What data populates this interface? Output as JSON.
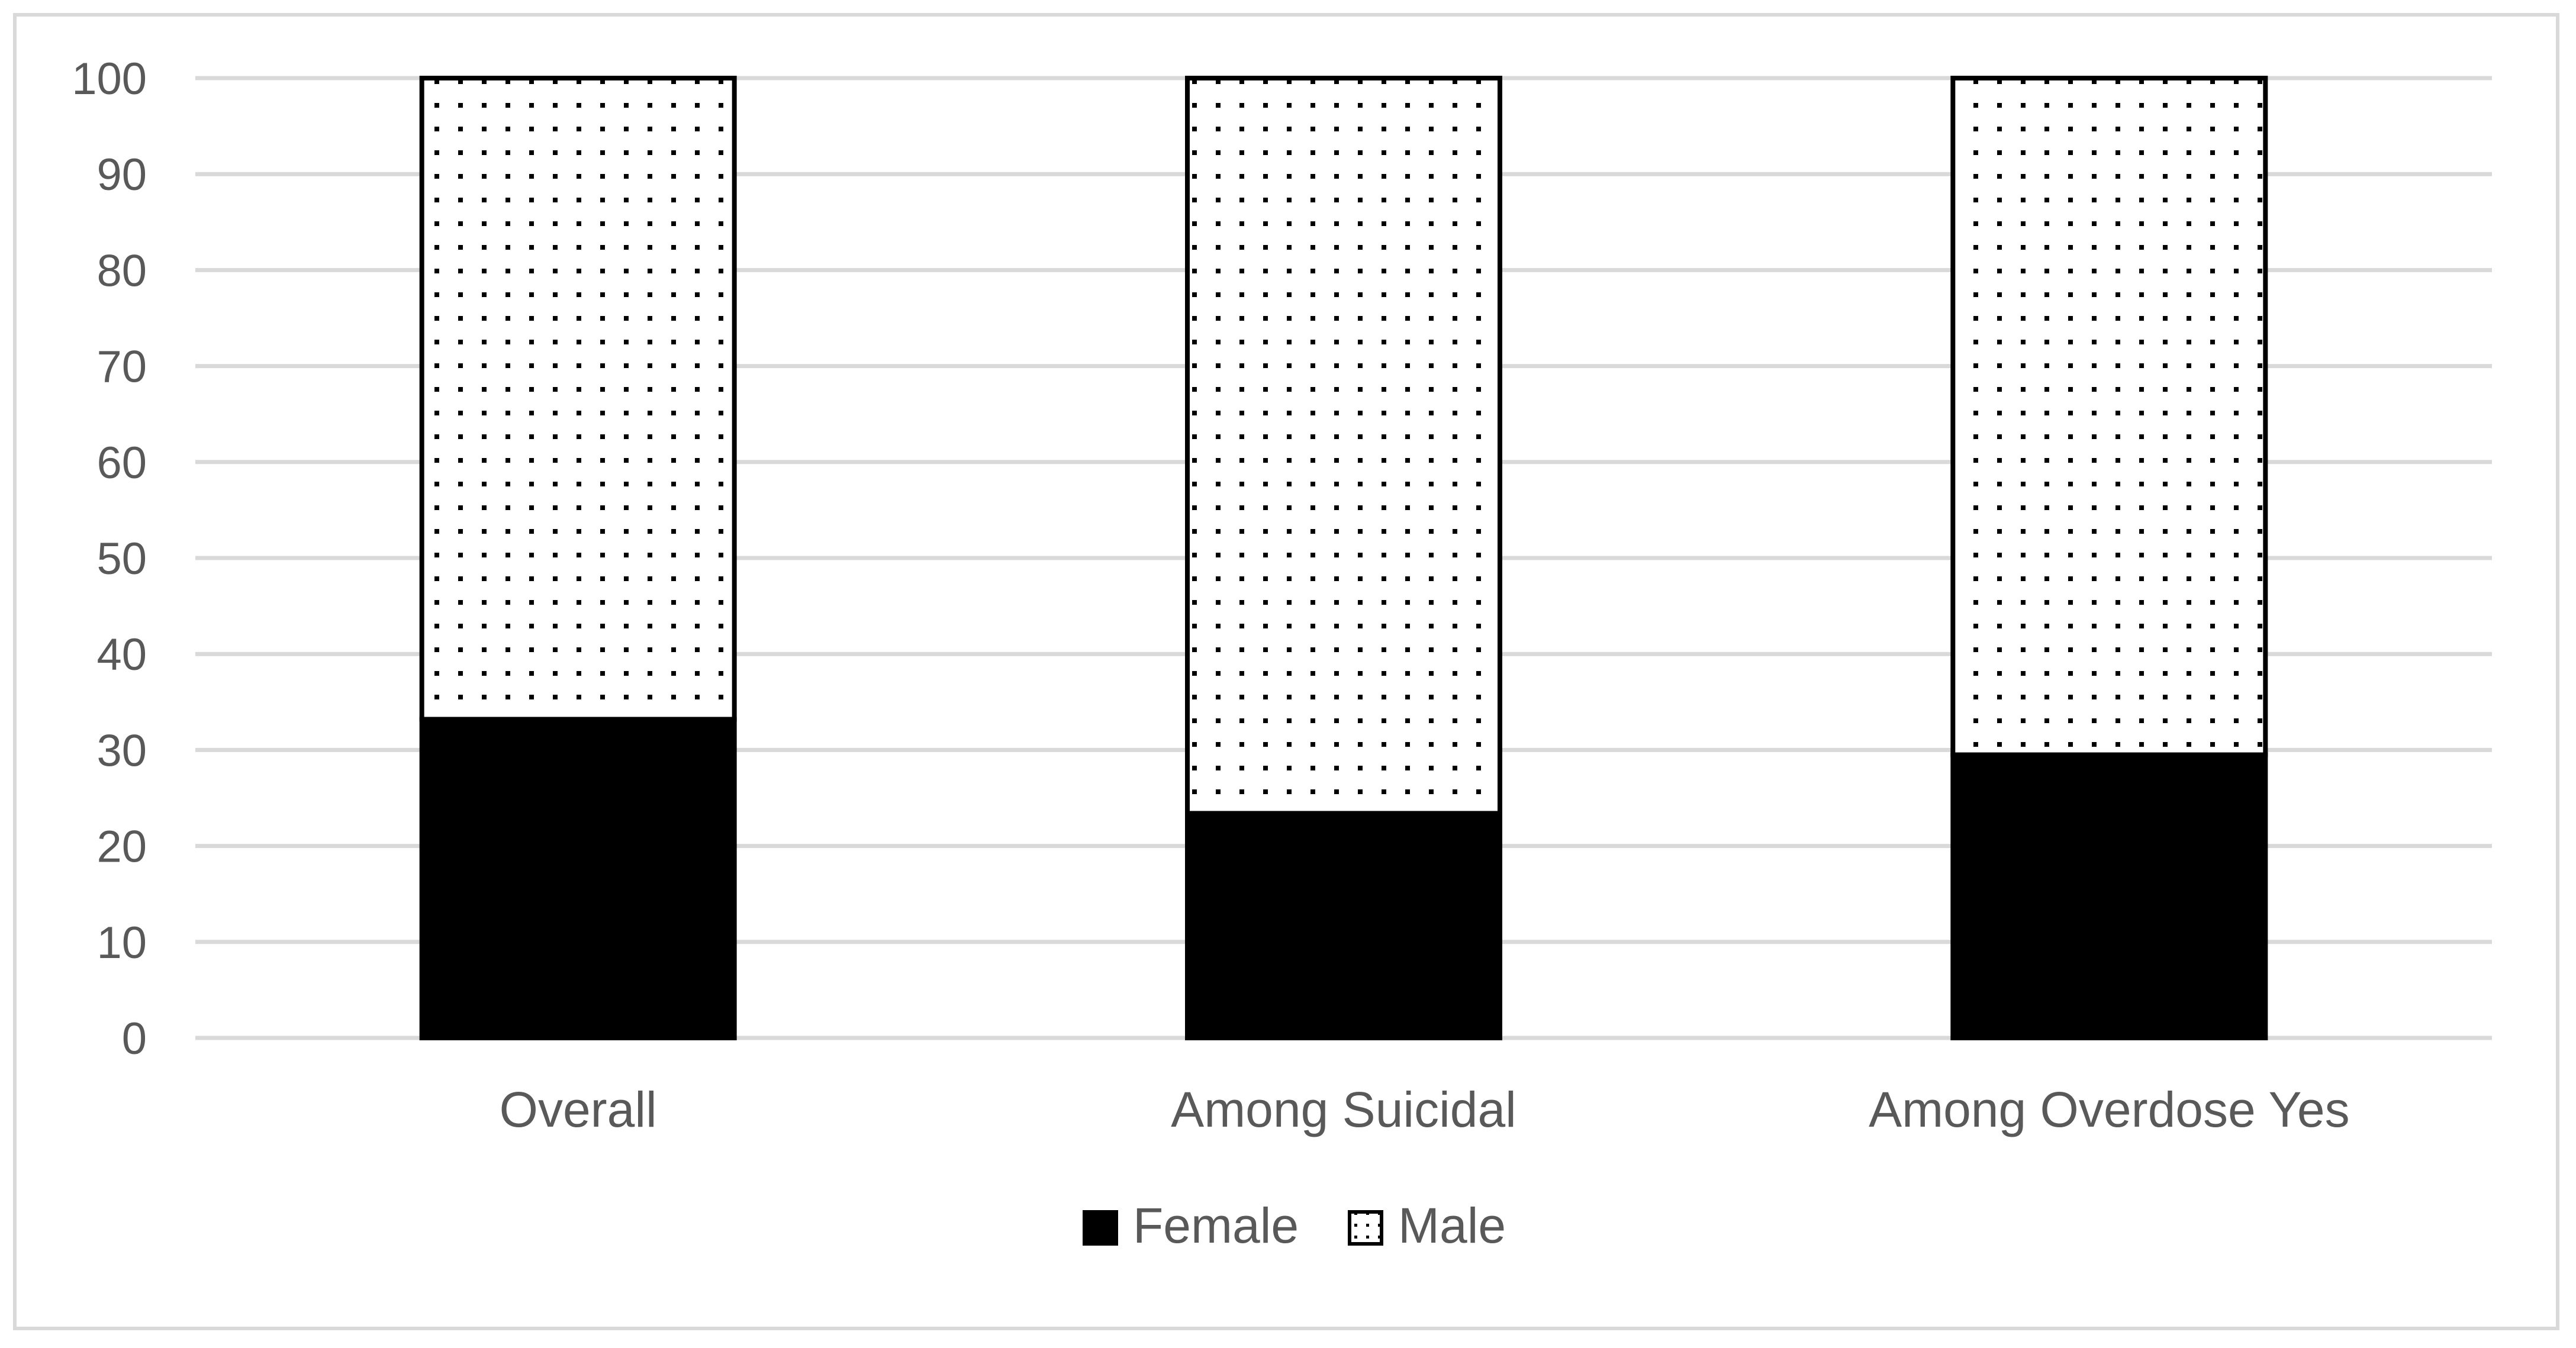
{
  "chart_data": {
    "type": "bar",
    "stacked": true,
    "categories": [
      "Overall",
      "Among Suicidal",
      "Among Overdose Yes"
    ],
    "series": [
      {
        "name": "Female",
        "values": [
          33.2,
          23.4,
          29.5
        ],
        "color": "#000000",
        "pattern": "solid"
      },
      {
        "name": "Male",
        "values": [
          66.8,
          76.6,
          70.5
        ],
        "color": "#ffffff",
        "pattern": "dotted"
      }
    ],
    "title": "",
    "xlabel": "",
    "ylabel": "",
    "ylim": [
      0,
      100
    ],
    "yticks": [
      "0",
      "10",
      "20",
      "30",
      "40",
      "50",
      "60",
      "70",
      "80",
      "90",
      "100"
    ],
    "grid": true,
    "grid_color": "#d9d9d9",
    "legend_position": "bottom"
  }
}
